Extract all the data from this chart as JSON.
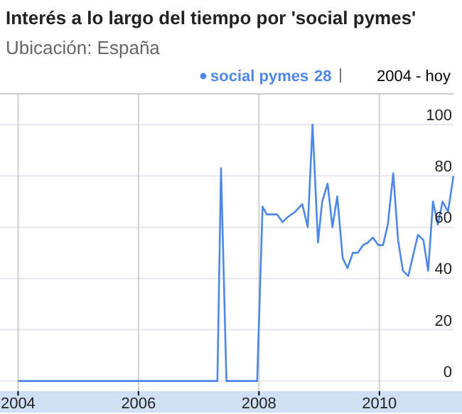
{
  "chart_data": {
    "type": "line",
    "title": "Interés a lo largo del tiempo por 'social pymes'",
    "subtitle": "Ubicación: España",
    "annotations": [
      "28",
      "2004 - hoy"
    ],
    "legend": "top right",
    "grid": true,
    "marker": "none",
    "line_style": "solid",
    "xlim": [
      2003.7,
      2011.23
    ],
    "xticks": [
      {
        "value": 2004,
        "label": "2004"
      },
      {
        "value": 2006,
        "label": "2006"
      },
      {
        "value": 2008,
        "label": "2008"
      },
      {
        "value": 2010,
        "label": "2010"
      }
    ],
    "ylim": [
      -4,
      112
    ],
    "yticks": [
      0,
      20,
      40,
      60,
      80,
      100
    ],
    "series": [
      {
        "name": "social pymes",
        "color": "#4d88e8",
        "x": [
          2004,
          2007.31,
          2007.37,
          2007.46,
          2007.97,
          2008.06,
          2008.13,
          2008.3,
          2008.39,
          2008.48,
          2008.6,
          2008.72,
          2008.81,
          2008.89,
          2008.98,
          2009.05,
          2009.14,
          2009.22,
          2009.3,
          2009.39,
          2009.47,
          2009.56,
          2009.64,
          2009.73,
          2009.81,
          2009.89,
          2009.98,
          2010.06,
          2010.14,
          2010.23,
          2010.31,
          2010.39,
          2010.48,
          2010.56,
          2010.64,
          2010.73,
          2010.81,
          2010.89,
          2010.97,
          2011.05,
          2011.14,
          2011.23
        ],
        "values": [
          0,
          0,
          83,
          0,
          0,
          68,
          65,
          65,
          62,
          64,
          66,
          69,
          60,
          100,
          54,
          70,
          77,
          60,
          72,
          48,
          44,
          50,
          50,
          53,
          54,
          56,
          53,
          53,
          61,
          81,
          55,
          43,
          41,
          49,
          57,
          55,
          43,
          70,
          61,
          70,
          66,
          80
        ]
      }
    ]
  }
}
